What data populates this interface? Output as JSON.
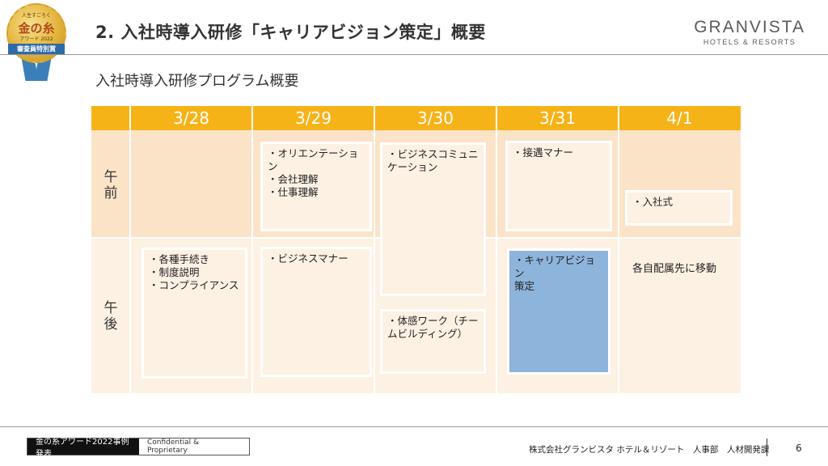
{
  "badge": {
    "line1": "人生すごろく",
    "line2": "金の糸",
    "line3": "アワード 2022",
    "line4": "審査員特別賞"
  },
  "header": {
    "title": "2. 入社時導入研修「キャリアビジョン策定」概要",
    "brand_name": "GRANVISTA",
    "brand_sub": "HOTELS & RESORTS"
  },
  "subtitle": "入社時導入研修プログラム概要",
  "schedule": {
    "dates": [
      "3/28",
      "3/29",
      "3/30",
      "3/31",
      "4/1"
    ],
    "am_label": "午\n前",
    "pm_label": "午\n後",
    "sessions": {
      "d329_am": "・オリエンテーション\n・会社理解\n・仕事理解",
      "d330_am": "・ビジネスコミュニ\nケーション",
      "d331_am": "・接遇マナー",
      "d41_am": "・入社式",
      "d328_pm": "・各種手続き\n・制度説明\n・コンプライアンス",
      "d329_pm": "・ビジネスマナー",
      "d330_pm": "・体感ワーク（チー\nムビルディング）",
      "d331_pm": "・キャリアビジョン\n策定",
      "d41_pm": "各自配属先に移動"
    }
  },
  "footer": {
    "event": "金の糸アワード2022事例発表",
    "confidential": "Confidential & Proprietary",
    "company": "株式会社グランビスタ ホテル＆リゾート　人事部　人材開発課",
    "page": "6"
  },
  "colors": {
    "header_bar": "#f6b318",
    "highlight": "#8db4db"
  }
}
